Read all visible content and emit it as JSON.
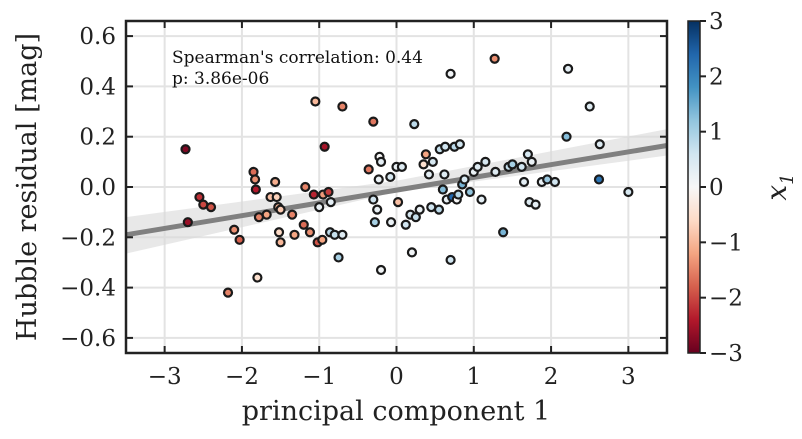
{
  "chart_data": {
    "type": "scatter",
    "xlabel": "principal component 1",
    "ylabel": "Hubble residual [mag]",
    "xlim": [
      -3.5,
      3.5
    ],
    "ylim": [
      -0.66,
      0.66
    ],
    "xticks": [
      -3,
      -2,
      -1,
      0,
      1,
      2,
      3
    ],
    "yticks": [
      -0.6,
      -0.4,
      -0.2,
      0.0,
      0.2,
      0.4,
      0.6
    ],
    "xtick_labels": [
      "−3",
      "−2",
      "−1",
      "0",
      "1",
      "2",
      "3"
    ],
    "ytick_labels": [
      "−0.6",
      "−0.4",
      "−0.2",
      "0.0",
      "0.2",
      "0.4",
      "0.6"
    ],
    "grid": true,
    "annotations": [
      "Spearman's correlation: 0.44",
      "p: 3.86e-06"
    ],
    "fit_line": {
      "x": [
        -3.5,
        3.5
      ],
      "y": [
        -0.19,
        0.165
      ],
      "color": "#808080",
      "band": {
        "x": [
          -3.5,
          0.0,
          3.5
        ],
        "lower": [
          -0.265,
          -0.02,
          0.125
        ],
        "upper": [
          -0.12,
          0.025,
          0.23
        ]
      }
    },
    "colorbar": {
      "label": "x",
      "label_subscript": "1",
      "range": [
        -3,
        3
      ],
      "ticks": [
        3,
        2,
        1,
        0,
        -1,
        -2,
        -3
      ],
      "tick_labels": [
        "3",
        "2",
        "1",
        "0",
        "−1",
        "−2",
        "−3"
      ],
      "colormap": "RdBu",
      "stops": [
        "#67001f",
        "#b2182b",
        "#d6604d",
        "#f4a582",
        "#fddbc7",
        "#f7f7f7",
        "#d1e5f0",
        "#92c5de",
        "#4393c3",
        "#2166ac",
        "#053061"
      ]
    },
    "points": [
      {
        "x": -2.73,
        "y": 0.15,
        "c": -2.8
      },
      {
        "x": -2.7,
        "y": -0.14,
        "c": -2.6
      },
      {
        "x": -2.55,
        "y": -0.04,
        "c": -2.2
      },
      {
        "x": -2.5,
        "y": -0.07,
        "c": -2.0
      },
      {
        "x": -2.4,
        "y": -0.08,
        "c": -1.9
      },
      {
        "x": -2.18,
        "y": -0.42,
        "c": -1.5
      },
      {
        "x": -2.1,
        "y": -0.17,
        "c": -1.4
      },
      {
        "x": -2.03,
        "y": -0.21,
        "c": -1.8
      },
      {
        "x": -1.85,
        "y": 0.06,
        "c": -1.7
      },
      {
        "x": -1.83,
        "y": 0.03,
        "c": -1.4
      },
      {
        "x": -1.82,
        "y": -0.01,
        "c": -2.4
      },
      {
        "x": -1.8,
        "y": -0.36,
        "c": -0.5
      },
      {
        "x": -1.78,
        "y": -0.12,
        "c": -1.5
      },
      {
        "x": -1.68,
        "y": -0.11,
        "c": -1.2
      },
      {
        "x": -1.63,
        "y": -0.04,
        "c": -0.9
      },
      {
        "x": -1.57,
        "y": 0.02,
        "c": -1.1
      },
      {
        "x": -1.55,
        "y": -0.04,
        "c": -0.7
      },
      {
        "x": -1.53,
        "y": -0.08,
        "c": -1.0
      },
      {
        "x": -1.52,
        "y": -0.18,
        "c": -0.6
      },
      {
        "x": -1.5,
        "y": -0.22,
        "c": -1.0
      },
      {
        "x": -1.5,
        "y": -0.09,
        "c": -0.8
      },
      {
        "x": -1.35,
        "y": -0.11,
        "c": -1.5
      },
      {
        "x": -1.32,
        "y": -0.19,
        "c": -1.2
      },
      {
        "x": -1.2,
        "y": -0.15,
        "c": -1.7
      },
      {
        "x": -1.18,
        "y": 0.0,
        "c": -1.5
      },
      {
        "x": -1.12,
        "y": -0.18,
        "c": -1.4
      },
      {
        "x": -1.07,
        "y": -0.03,
        "c": -2.3
      },
      {
        "x": -1.05,
        "y": 0.34,
        "c": -1.0
      },
      {
        "x": -1.02,
        "y": -0.22,
        "c": -1.9
      },
      {
        "x": -1.0,
        "y": -0.08,
        "c": 0.2
      },
      {
        "x": -0.96,
        "y": -0.21,
        "c": -1.2
      },
      {
        "x": -0.95,
        "y": -0.03,
        "c": -1.3
      },
      {
        "x": -0.93,
        "y": 0.16,
        "c": -2.5
      },
      {
        "x": -0.88,
        "y": -0.02,
        "c": -2.1
      },
      {
        "x": -0.86,
        "y": -0.18,
        "c": 0.8
      },
      {
        "x": -0.85,
        "y": -0.06,
        "c": 0.3
      },
      {
        "x": -0.8,
        "y": -0.19,
        "c": 0.7
      },
      {
        "x": -0.75,
        "y": -0.28,
        "c": 1.0
      },
      {
        "x": -0.7,
        "y": 0.32,
        "c": -1.5
      },
      {
        "x": -0.7,
        "y": -0.19,
        "c": 0.4
      },
      {
        "x": -0.36,
        "y": 0.07,
        "c": -1.6
      },
      {
        "x": -0.3,
        "y": 0.26,
        "c": -1.6
      },
      {
        "x": -0.3,
        "y": -0.05,
        "c": 0.6
      },
      {
        "x": -0.28,
        "y": -0.14,
        "c": 1.0
      },
      {
        "x": -0.25,
        "y": -0.09,
        "c": 0.2
      },
      {
        "x": -0.23,
        "y": 0.03,
        "c": 0.2
      },
      {
        "x": -0.22,
        "y": 0.12,
        "c": 0.0
      },
      {
        "x": -0.2,
        "y": 0.1,
        "c": 0.3
      },
      {
        "x": -0.2,
        "y": -0.33,
        "c": 0.1
      },
      {
        "x": -0.08,
        "y": 0.04,
        "c": 0.5
      },
      {
        "x": -0.07,
        "y": -0.14,
        "c": 0.2
      },
      {
        "x": 0.0,
        "y": 0.08,
        "c": 0.2
      },
      {
        "x": 0.02,
        "y": -0.06,
        "c": -0.9
      },
      {
        "x": 0.07,
        "y": 0.08,
        "c": 0.4
      },
      {
        "x": 0.12,
        "y": -0.15,
        "c": 0.6
      },
      {
        "x": 0.18,
        "y": -0.11,
        "c": 0.5
      },
      {
        "x": 0.2,
        "y": -0.26,
        "c": 0.1
      },
      {
        "x": 0.23,
        "y": 0.25,
        "c": 0.8
      },
      {
        "x": 0.25,
        "y": -0.12,
        "c": 0.7
      },
      {
        "x": 0.3,
        "y": -0.09,
        "c": 0.2
      },
      {
        "x": 0.35,
        "y": 0.09,
        "c": -0.5
      },
      {
        "x": 0.38,
        "y": 0.13,
        "c": -1.2
      },
      {
        "x": 0.42,
        "y": 0.05,
        "c": 0.3
      },
      {
        "x": 0.45,
        "y": -0.08,
        "c": 0.6
      },
      {
        "x": 0.47,
        "y": 0.1,
        "c": 0.5
      },
      {
        "x": 0.55,
        "y": -0.09,
        "c": 0.8
      },
      {
        "x": 0.56,
        "y": 0.15,
        "c": 0.7
      },
      {
        "x": 0.6,
        "y": -0.01,
        "c": 1.3
      },
      {
        "x": 0.62,
        "y": 0.05,
        "c": 0.4
      },
      {
        "x": 0.63,
        "y": 0.16,
        "c": 0.6
      },
      {
        "x": 0.65,
        "y": -0.05,
        "c": 0.2
      },
      {
        "x": 0.7,
        "y": 0.45,
        "c": 0.1
      },
      {
        "x": 0.7,
        "y": -0.29,
        "c": 0.6
      },
      {
        "x": 0.72,
        "y": -0.04,
        "c": 2.4
      },
      {
        "x": 0.75,
        "y": 0.16,
        "c": 0.8
      },
      {
        "x": 0.78,
        "y": -0.05,
        "c": 0.0
      },
      {
        "x": 0.8,
        "y": -0.03,
        "c": 0.9
      },
      {
        "x": 0.82,
        "y": 0.17,
        "c": 0.6
      },
      {
        "x": 0.85,
        "y": 0.01,
        "c": 1.4
      },
      {
        "x": 0.88,
        "y": 0.03,
        "c": 0.5
      },
      {
        "x": 0.95,
        "y": -0.02,
        "c": 1.2
      },
      {
        "x": 1.0,
        "y": 0.06,
        "c": 0.2
      },
      {
        "x": 1.05,
        "y": 0.08,
        "c": 0.4
      },
      {
        "x": 1.1,
        "y": -0.05,
        "c": 0.3
      },
      {
        "x": 1.15,
        "y": 0.1,
        "c": 0.5
      },
      {
        "x": 1.27,
        "y": 0.51,
        "c": -1.4
      },
      {
        "x": 1.28,
        "y": 0.06,
        "c": 0.4
      },
      {
        "x": 1.38,
        "y": -0.18,
        "c": 1.4
      },
      {
        "x": 1.45,
        "y": 0.08,
        "c": 0.7
      },
      {
        "x": 1.5,
        "y": 0.09,
        "c": 1.0
      },
      {
        "x": 1.62,
        "y": 0.08,
        "c": 0.6
      },
      {
        "x": 1.65,
        "y": 0.02,
        "c": 0.3
      },
      {
        "x": 1.7,
        "y": 0.13,
        "c": 0.5
      },
      {
        "x": 1.72,
        "y": -0.06,
        "c": 0.4
      },
      {
        "x": 1.75,
        "y": 0.1,
        "c": 0.2
      },
      {
        "x": 1.8,
        "y": -0.07,
        "c": 0.3
      },
      {
        "x": 1.88,
        "y": 0.02,
        "c": 0.2
      },
      {
        "x": 1.95,
        "y": 0.03,
        "c": 1.1
      },
      {
        "x": 2.05,
        "y": 0.02,
        "c": 0.6
      },
      {
        "x": 2.2,
        "y": 0.2,
        "c": 1.3
      },
      {
        "x": 2.22,
        "y": 0.47,
        "c": 0.3
      },
      {
        "x": 2.5,
        "y": 0.32,
        "c": 0.4
      },
      {
        "x": 2.62,
        "y": 0.03,
        "c": 2.2
      },
      {
        "x": 2.63,
        "y": 0.17,
        "c": 0.4
      },
      {
        "x": 3.0,
        "y": -0.02,
        "c": 0.5
      }
    ]
  }
}
